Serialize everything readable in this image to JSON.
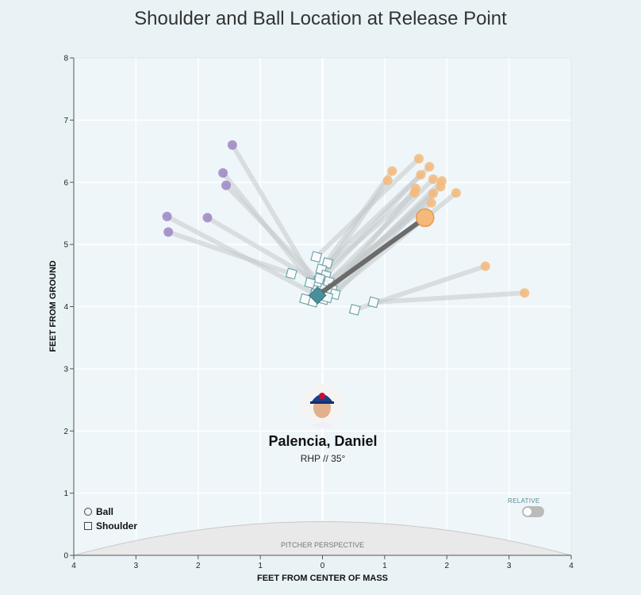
{
  "chart_data": {
    "type": "scatter",
    "title": "Shoulder and Ball Location at Release Point",
    "xlabel": "FEET FROM CENTER OF MASS",
    "ylabel": "FEET FROM GROUND",
    "xlim": [
      -4,
      4
    ],
    "ylim": [
      0,
      8
    ],
    "x_ticks": [
      -4,
      -3,
      -2,
      -1,
      0,
      1,
      2,
      3,
      4
    ],
    "x_tick_labels": [
      "4",
      "3",
      "2",
      "1",
      "0",
      "1",
      "2",
      "3",
      "4"
    ],
    "y_ticks": [
      0,
      1,
      2,
      3,
      4,
      5,
      6,
      7,
      8
    ],
    "y_tick_labels": [
      "0",
      "1",
      "2",
      "3",
      "4",
      "5",
      "6",
      "7",
      "8"
    ],
    "grid": true,
    "series": [
      {
        "name": "Ball",
        "color": "#f5b97a",
        "marker": "circle"
      },
      {
        "name": "Shoulder",
        "color": "#4a8f9c",
        "marker": "square"
      }
    ],
    "ball_colors": {
      "orange": "#f5b97a",
      "purple": "#9e86c6"
    },
    "pitches": [
      {
        "ball": [
          -1.45,
          6.6
        ],
        "shoulder": [
          -0.05,
          4.25
        ],
        "color": "purple"
      },
      {
        "ball": [
          -1.6,
          6.15
        ],
        "shoulder": [
          -0.1,
          4.3
        ],
        "color": "purple"
      },
      {
        "ball": [
          -1.55,
          5.95
        ],
        "shoulder": [
          0.0,
          4.35
        ],
        "color": "purple"
      },
      {
        "ball": [
          -2.5,
          5.45
        ],
        "shoulder": [
          -0.12,
          4.2
        ],
        "color": "purple"
      },
      {
        "ball": [
          -2.48,
          5.2
        ],
        "shoulder": [
          -0.5,
          4.53
        ],
        "color": "purple"
      },
      {
        "ball": [
          -1.85,
          5.43
        ],
        "shoulder": [
          -0.08,
          4.4
        ],
        "color": "purple"
      },
      {
        "ball": [
          1.55,
          6.38
        ],
        "shoulder": [
          -0.1,
          4.8
        ],
        "color": "orange"
      },
      {
        "ball": [
          1.72,
          6.25
        ],
        "shoulder": [
          0.08,
          4.7
        ],
        "color": "orange"
      },
      {
        "ball": [
          1.12,
          6.18
        ],
        "shoulder": [
          -0.02,
          4.6
        ],
        "color": "orange"
      },
      {
        "ball": [
          1.58,
          6.12
        ],
        "shoulder": [
          0.05,
          4.5
        ],
        "color": "orange"
      },
      {
        "ball": [
          1.05,
          6.03
        ],
        "shoulder": [
          -0.05,
          4.45
        ],
        "color": "orange"
      },
      {
        "ball": [
          1.78,
          6.05
        ],
        "shoulder": [
          0.1,
          4.4
        ],
        "color": "orange"
      },
      {
        "ball": [
          1.92,
          6.02
        ],
        "shoulder": [
          0.15,
          4.28
        ],
        "color": "orange"
      },
      {
        "ball": [
          1.9,
          5.93
        ],
        "shoulder": [
          0.2,
          4.2
        ],
        "color": "orange"
      },
      {
        "ball": [
          1.5,
          5.9
        ],
        "shoulder": [
          0.02,
          4.12
        ],
        "color": "orange"
      },
      {
        "ball": [
          1.48,
          5.83
        ],
        "shoulder": [
          -0.2,
          4.38
        ],
        "color": "orange"
      },
      {
        "ball": [
          1.78,
          5.82
        ],
        "shoulder": [
          -0.15,
          4.08
        ],
        "color": "orange"
      },
      {
        "ball": [
          2.15,
          5.83
        ],
        "shoulder": [
          0.08,
          4.15
        ],
        "color": "orange"
      },
      {
        "ball": [
          1.75,
          5.67
        ],
        "shoulder": [
          -0.28,
          4.12
        ],
        "color": "orange"
      },
      {
        "ball": [
          2.62,
          4.65
        ],
        "shoulder": [
          0.52,
          3.95
        ],
        "color": "orange"
      },
      {
        "ball": [
          3.25,
          4.22
        ],
        "shoulder": [
          0.82,
          4.07
        ],
        "color": "orange"
      },
      {
        "ball": [
          1.65,
          5.43
        ],
        "shoulder": [
          -0.08,
          4.18
        ],
        "color": "orange",
        "highlight": true
      }
    ]
  },
  "player": {
    "name": "Palencia, Daniel",
    "info": "RHP // 35°"
  },
  "legend": {
    "ball": "Ball",
    "shoulder": "Shoulder"
  },
  "perspective_label": "PITCHER PERSPECTIVE",
  "relative_label": "RELATIVE"
}
